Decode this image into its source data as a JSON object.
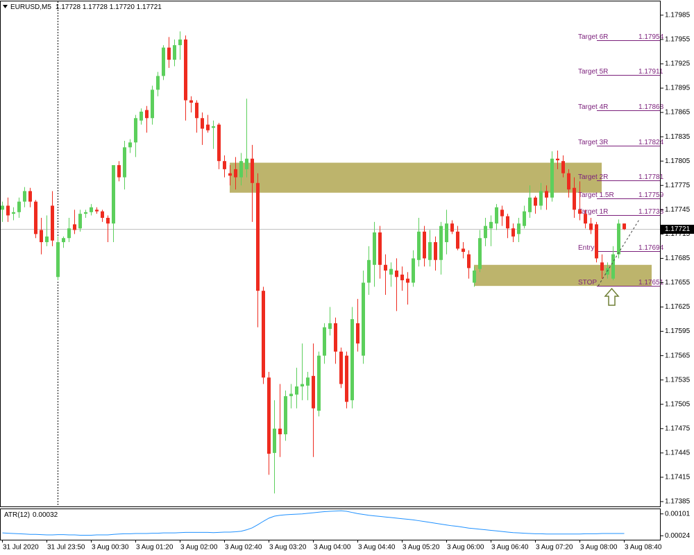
{
  "chart_data": [
    {
      "type": "candlestick",
      "header": {
        "symbol": "EURUSD,M5",
        "quote": "1.17728 1.17728 1.17720 1.17721"
      },
      "categories": [
        "31 Jul 2020",
        null,
        null,
        null,
        null,
        null,
        null,
        null,
        "31 Jul 23:50",
        null,
        null,
        null,
        null,
        null,
        null,
        null,
        "3 Aug 00:30",
        null,
        null,
        null,
        null,
        null,
        null,
        null,
        "3 Aug 01:20",
        null,
        null,
        null,
        null,
        null,
        null,
        null,
        "3 Aug 02:00",
        null,
        null,
        null,
        null,
        null,
        null,
        null,
        "3 Aug 02:40",
        null,
        null,
        null,
        null,
        null,
        null,
        null,
        "3 Aug 03:20",
        null,
        null,
        null,
        null,
        null,
        null,
        null,
        "3 Aug 04:00",
        null,
        null,
        null,
        null,
        null,
        null,
        null,
        "3 Aug 04:40",
        null,
        null,
        null,
        null,
        null,
        null,
        null,
        "3 Aug 05:20",
        null,
        null,
        null,
        null,
        null,
        null,
        null,
        "3 Aug 06:00",
        null,
        null,
        null,
        null,
        null,
        null,
        null,
        "3 Aug 06:40",
        null,
        null,
        null,
        null,
        null,
        null,
        null,
        "3 Aug 07:20",
        null,
        null,
        null,
        null,
        null,
        null,
        null,
        "3 Aug 08:00",
        null,
        null,
        null,
        null,
        null,
        null,
        null,
        "3 Aug 08:40"
      ],
      "open": [
        1.17745,
        1.1775,
        1.1774,
        1.17742,
        1.17755,
        1.17768,
        1.17755,
        1.1772,
        1.17705,
        1.1775,
        1.17662,
        1.17705,
        1.1771,
        1.17727,
        1.17722,
        1.1774,
        1.17742,
        1.17745,
        1.17743,
        1.17735,
        1.17728,
        1.178,
        1.17785,
        1.17822,
        1.17828,
        1.17855,
        1.17868,
        1.17858,
        1.17893,
        1.1791,
        1.17945,
        1.1793,
        1.17948,
        1.17955,
        1.1788,
        1.17877,
        1.17858,
        1.1785,
        1.17846,
        1.1785,
        1.17805,
        1.1779,
        1.17795,
        1.17785,
        1.17795,
        1.17808,
        1.17778,
        1.17645,
        1.17538,
        1.17445,
        1.17475,
        1.17468,
        1.17515,
        1.17517,
        1.17527,
        1.17528,
        1.1754,
        1.17497,
        1.17565,
        1.17598,
        1.17605,
        1.1757,
        1.17565,
        1.1751,
        1.17605,
        1.17565,
        1.17655,
        1.17677,
        1.17717,
        1.17677,
        1.17665,
        1.1767,
        1.17665,
        1.1766,
        1.17655,
        1.17683,
        1.17718,
        1.17683,
        1.17705,
        1.17683,
        1.17705,
        1.17728,
        1.17718,
        1.17697,
        1.1769,
        1.17655,
        1.17672,
        1.1771,
        1.17722,
        1.17728,
        1.17745,
        1.17737,
        1.17722,
        1.17715,
        1.17725,
        1.17742,
        1.1776,
        1.1775,
        1.17768,
        1.1776,
        1.17808,
        1.17805,
        1.1779,
        1.17772,
        1.17745,
        1.1774,
        1.17728,
        1.17727,
        1.1768,
        1.17665,
        1.1766,
        1.1769,
        1.17728
      ],
      "high": [
        1.17755,
        1.1776,
        1.17748,
        1.1776,
        1.17773,
        1.17772,
        1.17757,
        1.17735,
        1.17738,
        1.17768,
        1.17712,
        1.17712,
        1.17735,
        1.17745,
        1.17745,
        1.17745,
        1.17752,
        1.17748,
        1.17745,
        1.17738,
        1.178,
        1.17805,
        1.1783,
        1.17832,
        1.17862,
        1.1787,
        1.17873,
        1.17898,
        1.17915,
        1.17948,
        1.17958,
        1.17955,
        1.17965,
        1.1796,
        1.17885,
        1.1788,
        1.17865,
        1.17862,
        1.17855,
        1.17852,
        1.17812,
        1.178,
        1.1781,
        1.17815,
        1.17882,
        1.17825,
        1.1779,
        1.1765,
        1.17545,
        1.1751,
        1.1753,
        1.17522,
        1.1753,
        1.1755,
        1.1758,
        1.17545,
        1.1758,
        1.1757,
        1.17605,
        1.17625,
        1.17612,
        1.17575,
        1.1757,
        1.17625,
        1.17635,
        1.1767,
        1.177,
        1.1773,
        1.17725,
        1.1769,
        1.1768,
        1.17685,
        1.17675,
        1.17668,
        1.17695,
        1.17735,
        1.17725,
        1.1772,
        1.17712,
        1.1773,
        1.17745,
        1.17732,
        1.17725,
        1.17705,
        1.17695,
        1.17675,
        1.1772,
        1.17735,
        1.17738,
        1.17752,
        1.1775,
        1.1774,
        1.17728,
        1.17735,
        1.1775,
        1.17775,
        1.17762,
        1.17778,
        1.17775,
        1.17817,
        1.17818,
        1.17812,
        1.17795,
        1.17785,
        1.1778,
        1.17745,
        1.17735,
        1.1773,
        1.1769,
        1.1768,
        1.177,
        1.17733,
        1.17728
      ],
      "low": [
        1.1773,
        1.1773,
        1.17732,
        1.17735,
        1.17748,
        1.17748,
        1.1771,
        1.1769,
        1.177,
        1.177,
        1.17658,
        1.17698,
        1.17705,
        1.17715,
        1.17718,
        1.17735,
        1.17738,
        1.1774,
        1.1773,
        1.17705,
        1.17705,
        1.1778,
        1.1777,
        1.17815,
        1.1781,
        1.1785,
        1.1784,
        1.1785,
        1.17885,
        1.17905,
        1.1792,
        1.17922,
        1.1793,
        1.17855,
        1.17865,
        1.1784,
        1.17825,
        1.1784,
        1.1782,
        1.17795,
        1.17785,
        1.17775,
        1.1777,
        1.17775,
        1.17785,
        1.1773,
        1.176,
        1.1753,
        1.17418,
        1.17395,
        1.1744,
        1.1746,
        1.175,
        1.175,
        1.1751,
        1.1751,
        1.1744,
        1.1749,
        1.17555,
        1.1759,
        1.17555,
        1.17525,
        1.175,
        1.175,
        1.1757,
        1.17555,
        1.1764,
        1.1765,
        1.1766,
        1.1764,
        1.1765,
        1.1762,
        1.17645,
        1.17628,
        1.1765,
        1.17675,
        1.17675,
        1.17675,
        1.1767,
        1.17665,
        1.1769,
        1.17715,
        1.17695,
        1.17685,
        1.1766,
        1.1765,
        1.17668,
        1.177,
        1.177,
        1.1772,
        1.17725,
        1.1771,
        1.17705,
        1.17705,
        1.17722,
        1.17735,
        1.1774,
        1.17745,
        1.17745,
        1.17755,
        1.17795,
        1.17785,
        1.1776,
        1.17735,
        1.17732,
        1.17722,
        1.17715,
        1.1768,
        1.1766,
        1.1766,
        1.17658,
        1.17685,
        1.1772
      ],
      "close": [
        1.1775,
        1.17738,
        1.17742,
        1.17755,
        1.17768,
        1.17755,
        1.17715,
        1.17705,
        1.17712,
        1.17707,
        1.17705,
        1.1771,
        1.17722,
        1.1772,
        1.1774,
        1.17742,
        1.17748,
        1.17743,
        1.17735,
        1.17728,
        1.178,
        1.17785,
        1.17822,
        1.17828,
        1.17858,
        1.17866,
        1.17858,
        1.17893,
        1.1791,
        1.17945,
        1.1793,
        1.17948,
        1.17955,
        1.1788,
        1.17877,
        1.17858,
        1.17845,
        1.17843,
        1.17848,
        1.17805,
        1.17795,
        1.17787,
        1.17785,
        1.17805,
        1.17808,
        1.17778,
        1.17645,
        1.17538,
        1.17444,
        1.17475,
        1.17468,
        1.17515,
        1.17518,
        1.17527,
        1.1753,
        1.17538,
        1.175,
        1.17565,
        1.176,
        1.17605,
        1.1757,
        1.1753,
        1.17508,
        1.1761,
        1.1758,
        1.17655,
        1.17683,
        1.17717,
        1.17677,
        1.1767,
        1.17672,
        1.17662,
        1.17658,
        1.17655,
        1.17685,
        1.17718,
        1.17685,
        1.17705,
        1.17683,
        1.17725,
        1.17728,
        1.17718,
        1.17697,
        1.17693,
        1.17673,
        1.1767,
        1.1771,
        1.17725,
        1.1773,
        1.17748,
        1.17737,
        1.17722,
        1.17712,
        1.17728,
        1.17743,
        1.1776,
        1.1775,
        1.17768,
        1.1776,
        1.17808,
        1.17806,
        1.1779,
        1.1777,
        1.17745,
        1.1774,
        1.17728,
        1.1772,
        1.17685,
        1.1767,
        1.17673,
        1.1769,
        1.17728,
        1.17721
      ],
      "up_color": "#5ccf5c",
      "down_color": "#ee2b1f",
      "ylim": [
        1.17379,
        1.18002
      ],
      "yticks": [
        1.17985,
        1.17955,
        1.17925,
        1.17895,
        1.17865,
        1.17835,
        1.17805,
        1.17775,
        1.17745,
        1.17715,
        1.17685,
        1.17655,
        1.17625,
        1.17595,
        1.17565,
        1.17535,
        1.17505,
        1.17475,
        1.17445,
        1.17415,
        1.17385
      ],
      "zones": [
        {
          "x": [
            41,
            108
          ],
          "y": [
            1.17766,
            1.17803
          ],
          "color": "#bdb46c"
        },
        {
          "x": [
            85,
            117
          ],
          "y": [
            1.17651,
            1.17677
          ],
          "color": "#bdb46c"
        }
      ],
      "levels": [
        {
          "label": "Target 6R",
          "value": 1.17954
        },
        {
          "label": "Target 5R",
          "value": 1.17911
        },
        {
          "label": "Target 4R",
          "value": 1.17868
        },
        {
          "label": "Target 3R",
          "value": 1.17824
        },
        {
          "label": "Target 2R",
          "value": 1.17781
        },
        {
          "label": "Target 1.5R",
          "value": 1.17759
        },
        {
          "label": "Target 1R",
          "value": 1.17738
        },
        {
          "label": "Entry",
          "value": 1.17694
        },
        {
          "label": "STOP",
          "value": 1.17651
        }
      ],
      "level_color": "#7b1f7b"
    },
    {
      "type": "line",
      "series": [
        {
          "name": "ATR(12)",
          "color": "#1e90ff",
          "values": [
            0.00034,
            0.00033,
            0.00032,
            0.00031,
            0.0003,
            0.00029,
            0.00029,
            0.00028,
            0.00027,
            0.00027,
            0.00028,
            0.00028,
            0.00027,
            0.00027,
            0.00026,
            0.00026,
            0.00026,
            0.00027,
            0.00027,
            0.00027,
            0.00029,
            0.0003,
            0.00031,
            0.00031,
            0.00032,
            0.00032,
            0.00032,
            0.00033,
            0.00033,
            0.00034,
            0.00034,
            0.00034,
            0.00035,
            0.00036,
            0.00036,
            0.00036,
            0.00036,
            0.00036,
            0.00035,
            0.00036,
            0.00037,
            0.00037,
            0.00038,
            0.0004,
            0.00045,
            0.00052,
            0.00063,
            0.00075,
            0.00086,
            0.00093,
            0.00096,
            0.00098,
            0.00099,
            0.001,
            0.00101,
            0.00103,
            0.00105,
            0.00107,
            0.00109,
            0.0011,
            0.00111,
            0.00112,
            0.0011,
            0.00106,
            0.00102,
            0.00099,
            0.00096,
            0.00094,
            0.00092,
            0.0009,
            0.00088,
            0.00086,
            0.00084,
            0.00082,
            0.0008,
            0.00077,
            0.00074,
            0.00071,
            0.00068,
            0.00065,
            0.00062,
            0.00059,
            0.00057,
            0.00054,
            0.00051,
            0.00049,
            0.00047,
            0.00045,
            0.00043,
            0.00041,
            0.00039,
            0.00037,
            0.00035,
            0.00034,
            0.00033,
            0.00032,
            0.00031,
            0.00031,
            0.0003,
            0.0003,
            0.0003,
            0.0003,
            0.0003,
            0.0003,
            0.0003,
            0.00031,
            0.00031,
            0.00031,
            0.00032,
            0.00032,
            0.00032,
            0.00032,
            0.00032
          ]
        }
      ],
      "ylim": [
        0.0001,
        0.00115
      ],
      "yticks": [
        0.00101,
        0.00024
      ]
    }
  ]
}
